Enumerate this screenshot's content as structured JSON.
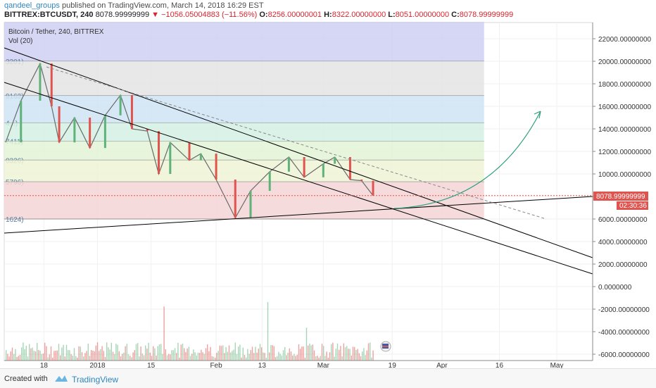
{
  "header": {
    "user": "qandeel_groups",
    "published": "published on TradingView.com, March 14, 2018 16:29 EST",
    "symbol": "BITTREX:BTCUSDT, 240",
    "price": "8078.99999999",
    "change": "−1056.05004883 (−11.56%)",
    "o_label": "O:",
    "o_value": "8256.00000001",
    "h_label": "H:",
    "h_value": "8322.00000000",
    "l_label": "L:",
    "l_value": "8051.00000000",
    "c_label": "C:",
    "c_value": "8078.99999999"
  },
  "legend": {
    "title": "Bitcoin / Tether, 240, BITTREX",
    "volume": "Vol (20)"
  },
  "price_tag": "8078.99999999",
  "countdown": "02:30:36",
  "footer": {
    "created": "Created with",
    "brand": "TradingView"
  },
  "colors": {
    "up": "#5fb37a",
    "down": "#e0544f",
    "trend": "#000000",
    "projection": "#2e9e7f"
  },
  "chart_data": {
    "type": "line",
    "title": "Bitcoin / Tether, 240, BITTREX",
    "y_ticks": [
      "22000.00000000",
      "20000.00000000",
      "18000.00000000",
      "16000.00000000",
      "14000.00000000",
      "12000.00000000",
      "10000.00000000",
      "8000.00000000",
      "6000.00000000",
      "4000.00000000",
      "2000.00000000",
      "0.0000000",
      "-2000.00000000",
      "-4000.00000000",
      "-6000.00000000"
    ],
    "x_ticks": [
      "18",
      "2018",
      "15",
      "Feb",
      "13",
      "Mar",
      "19",
      "Apr",
      "16",
      "May"
    ],
    "fib_levels": [
      {
        "label": "3201)",
        "value": 20000,
        "color": "#cfcff3"
      },
      {
        "label": "9163)",
        "value": 16950,
        "color": "#e4e4e4"
      },
      {
        "label": "4...)",
        "value": 14540,
        "color": "#cfe4f3"
      },
      {
        "label": "7411)",
        "value": 12900,
        "color": "#d4f0e3"
      },
      {
        "label": "0326)",
        "value": 11230,
        "color": "#e2f3d6"
      },
      {
        "label": "5796)",
        "value": 9300,
        "color": "#eef3d5"
      },
      {
        "label": "1624)",
        "value": 6000,
        "color": "#f3d5d5"
      }
    ],
    "y_range": [
      -6000,
      23000
    ],
    "price_path": [
      {
        "x": "2017-12-08",
        "y": 12800
      },
      {
        "x": "2017-12-12",
        "y": 16500
      },
      {
        "x": "2017-12-17",
        "y": 19800
      },
      {
        "x": "2017-12-20",
        "y": 16000
      },
      {
        "x": "2017-12-22",
        "y": 12800
      },
      {
        "x": "2017-12-26",
        "y": 15000
      },
      {
        "x": "2017-12-30",
        "y": 12300
      },
      {
        "x": "2018-01-03",
        "y": 15200
      },
      {
        "x": "2018-01-07",
        "y": 17000
      },
      {
        "x": "2018-01-10",
        "y": 14000
      },
      {
        "x": "2018-01-14",
        "y": 13800
      },
      {
        "x": "2018-01-17",
        "y": 10000
      },
      {
        "x": "2018-01-20",
        "y": 12800
      },
      {
        "x": "2018-01-25",
        "y": 11200
      },
      {
        "x": "2018-01-28",
        "y": 11800
      },
      {
        "x": "2018-02-01",
        "y": 9500
      },
      {
        "x": "2018-02-06",
        "y": 6100
      },
      {
        "x": "2018-02-10",
        "y": 8500
      },
      {
        "x": "2018-02-15",
        "y": 10200
      },
      {
        "x": "2018-02-20",
        "y": 11500
      },
      {
        "x": "2018-02-24",
        "y": 9700
      },
      {
        "x": "2018-03-01",
        "y": 10900
      },
      {
        "x": "2018-03-04",
        "y": 11500
      },
      {
        "x": "2018-03-08",
        "y": 9500
      },
      {
        "x": "2018-03-11",
        "y": 9400
      },
      {
        "x": "2018-03-14",
        "y": 8079
      }
    ],
    "current_price": 8078.99999999,
    "volume_range": [
      0,
      5000
    ]
  }
}
